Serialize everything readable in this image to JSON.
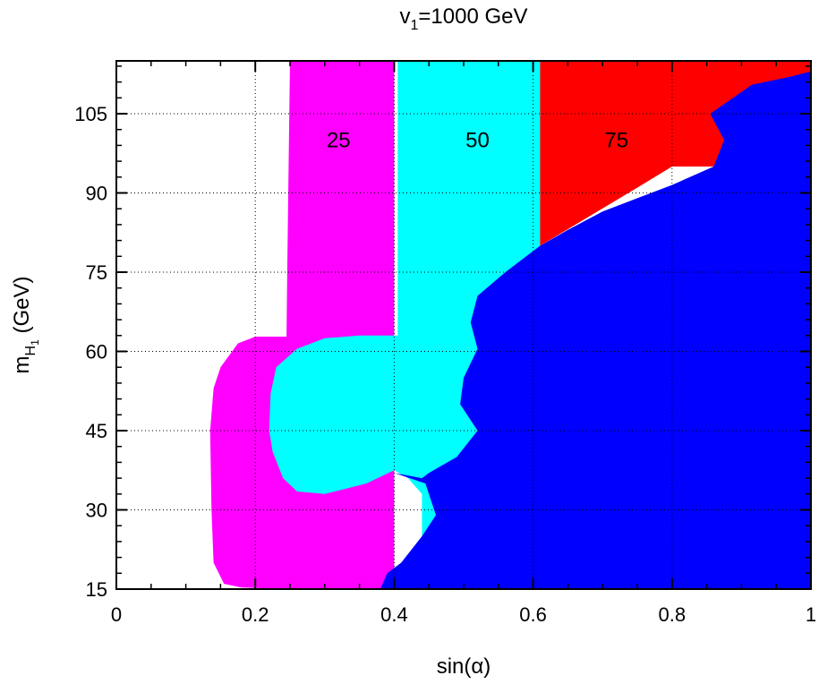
{
  "chart_data": {
    "type": "area",
    "title_main": "v",
    "title_sub": "1",
    "title_rest": "=1000 GeV",
    "xlabel": "sin(α)",
    "ylabel_main": "m",
    "ylabel_sub": "H",
    "ylabel_subsub": "1",
    "ylabel_rest": " (GeV)",
    "xlim": [
      0,
      1
    ],
    "ylim": [
      15,
      115
    ],
    "x_ticks": [
      {
        "value": 0,
        "label": "0"
      },
      {
        "value": 0.2,
        "label": "0.2"
      },
      {
        "value": 0.4,
        "label": "0.4"
      },
      {
        "value": 0.6,
        "label": "0.6"
      },
      {
        "value": 0.8,
        "label": "0.8"
      },
      {
        "value": 1,
        "label": "1"
      }
    ],
    "y_ticks": [
      {
        "value": 15,
        "label": "15"
      },
      {
        "value": 30,
        "label": "30"
      },
      {
        "value": 45,
        "label": "45"
      },
      {
        "value": 60,
        "label": "60"
      },
      {
        "value": 75,
        "label": "75"
      },
      {
        "value": 90,
        "label": "90"
      },
      {
        "value": 105,
        "label": "105"
      }
    ],
    "grid": true,
    "regions": [
      {
        "color": "#ff00ff",
        "points": [
          [
            0.25,
            115
          ],
          [
            0.4,
            115
          ],
          [
            0.4,
            15
          ],
          [
            0.25,
            15
          ],
          [
            0.18,
            15.3
          ],
          [
            0.155,
            16
          ],
          [
            0.14,
            20
          ],
          [
            0.137,
            30
          ],
          [
            0.135,
            45
          ],
          [
            0.14,
            53
          ],
          [
            0.15,
            57
          ],
          [
            0.175,
            61.5
          ],
          [
            0.2,
            62.8
          ],
          [
            0.245,
            62.8
          ],
          [
            0.246,
            75
          ]
        ]
      },
      {
        "color": "#00ffff",
        "points": [
          [
            0.405,
            115
          ],
          [
            0.61,
            115
          ],
          [
            0.61,
            15
          ],
          [
            0.44,
            15
          ],
          [
            0.44,
            33
          ],
          [
            0.42,
            36
          ],
          [
            0.4,
            37.5
          ],
          [
            0.36,
            35
          ],
          [
            0.3,
            33
          ],
          [
            0.26,
            33.5
          ],
          [
            0.24,
            36
          ],
          [
            0.225,
            41
          ],
          [
            0.22,
            45
          ],
          [
            0.222,
            52
          ],
          [
            0.23,
            57
          ],
          [
            0.26,
            60.5
          ],
          [
            0.3,
            62.5
          ],
          [
            0.35,
            63
          ],
          [
            0.405,
            63
          ]
        ]
      },
      {
        "color": "#ff0000",
        "points": [
          [
            0.61,
            115
          ],
          [
            1,
            115
          ],
          [
            1,
            95
          ],
          [
            0.9,
            95
          ],
          [
            0.8,
            95
          ],
          [
            0.75,
            91
          ],
          [
            0.61,
            80
          ]
        ]
      },
      {
        "color": "#0000ff",
        "points": [
          [
            0.38,
            15
          ],
          [
            1,
            15
          ],
          [
            1,
            113
          ],
          [
            0.97,
            112
          ],
          [
            0.915,
            110.5
          ],
          [
            0.855,
            105
          ],
          [
            0.875,
            100
          ],
          [
            0.86,
            95
          ],
          [
            0.8,
            91.5
          ],
          [
            0.75,
            89
          ],
          [
            0.7,
            86.5
          ],
          [
            0.65,
            83
          ],
          [
            0.61,
            80
          ],
          [
            0.56,
            75
          ],
          [
            0.52,
            70.5
          ],
          [
            0.51,
            65.5
          ],
          [
            0.52,
            60.5
          ],
          [
            0.5,
            55
          ],
          [
            0.495,
            50
          ],
          [
            0.52,
            45
          ],
          [
            0.49,
            40
          ],
          [
            0.45,
            37
          ],
          [
            0.44,
            36
          ],
          [
            0.4,
            37
          ],
          [
            0.445,
            35
          ],
          [
            0.46,
            29
          ],
          [
            0.44,
            25
          ],
          [
            0.41,
            20
          ],
          [
            0.39,
            18
          ]
        ]
      }
    ],
    "annotations": [
      {
        "text": "25",
        "x": 0.32,
        "y": 100
      },
      {
        "text": "50",
        "x": 0.52,
        "y": 100
      },
      {
        "text": "75",
        "x": 0.72,
        "y": 100
      }
    ]
  }
}
